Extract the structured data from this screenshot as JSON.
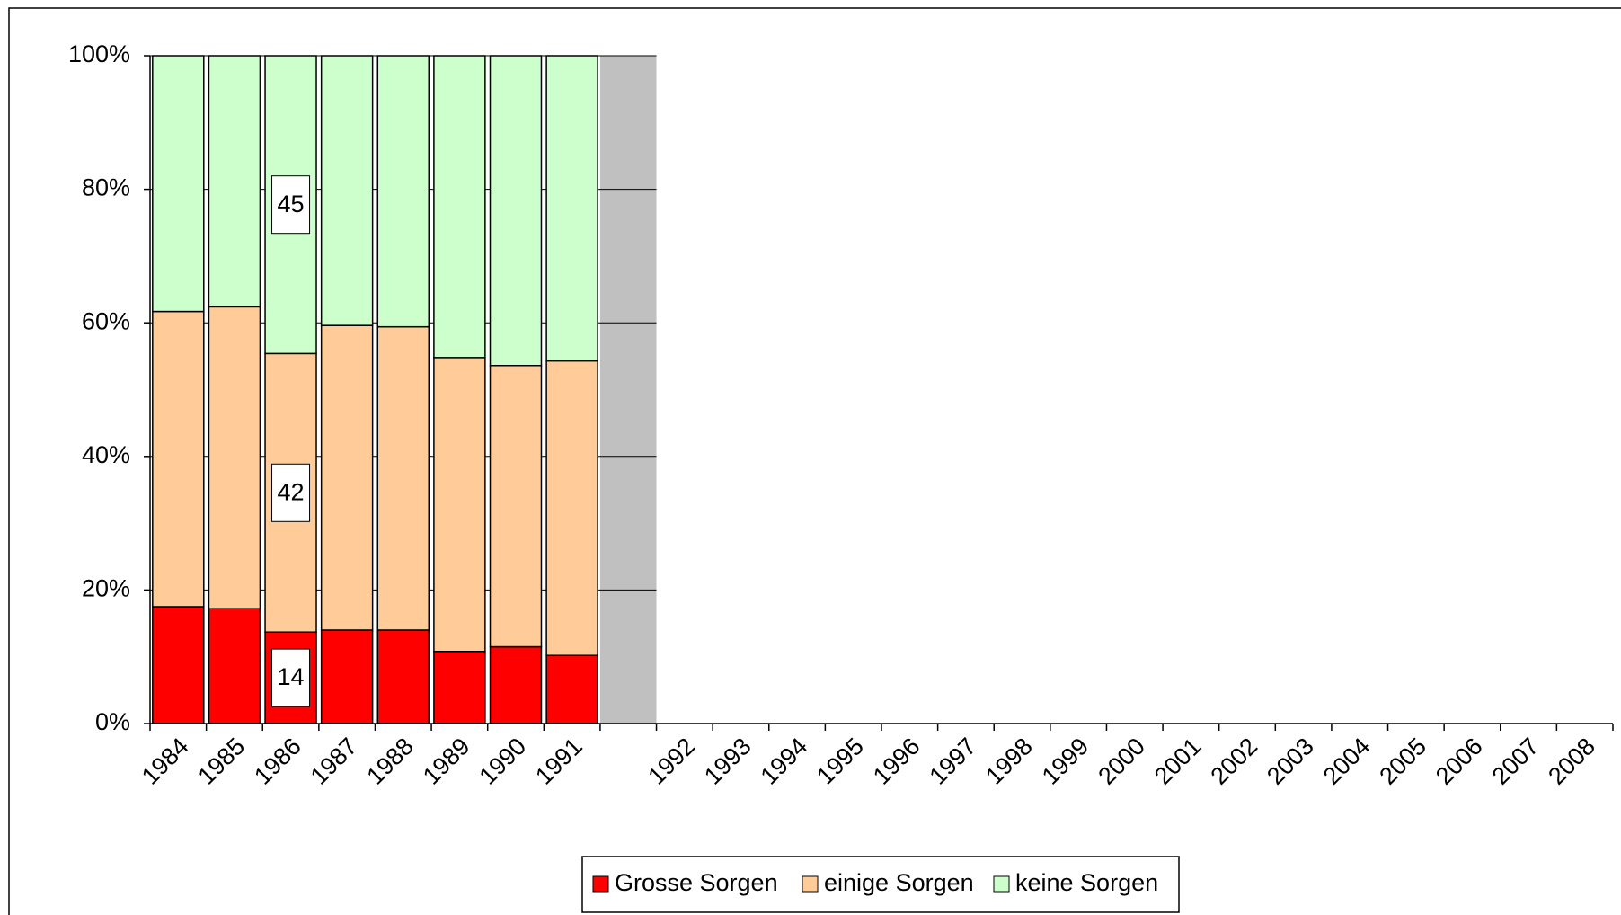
{
  "chart_data": {
    "type": "stacked_bar",
    "categories": [
      "1984",
      "1985",
      "1986",
      "1987",
      "1988",
      "1989",
      "1990",
      "1991",
      null,
      "1992",
      "1993",
      "1994",
      "1995",
      "1996",
      "1997",
      "1998",
      "1999",
      "2000",
      "2001",
      "2002",
      "2003",
      "2004",
      "2005",
      "2006",
      "2007",
      "2008"
    ],
    "series": [
      {
        "name": "Grosse Sorgen",
        "color": "#ff0000",
        "values": [
          17.5,
          17.2,
          13.7,
          14,
          14,
          10.8,
          11.5,
          10.2,
          null,
          null,
          null,
          null,
          null,
          null,
          null,
          null,
          null,
          null,
          null,
          null,
          null,
          null,
          null,
          null,
          null,
          null
        ],
        "value_labels": [
          null,
          null,
          "14",
          null,
          null,
          null,
          null,
          null,
          null,
          null,
          null,
          null,
          null,
          null,
          null,
          null,
          null,
          null,
          null,
          null,
          null,
          null,
          null,
          null,
          null,
          null
        ]
      },
      {
        "name": "einige Sorgen",
        "color": "#ffcc99",
        "values": [
          44.2,
          45.2,
          41.7,
          45.6,
          45.4,
          44,
          42.1,
          44.1,
          null,
          null,
          null,
          null,
          null,
          null,
          null,
          null,
          null,
          null,
          null,
          null,
          null,
          null,
          null,
          null,
          null,
          null
        ],
        "value_labels": [
          null,
          null,
          "42",
          null,
          null,
          null,
          null,
          null,
          null,
          null,
          null,
          null,
          null,
          null,
          null,
          null,
          null,
          null,
          null,
          null,
          null,
          null,
          null,
          null,
          null,
          null
        ]
      },
      {
        "name": "keine Sorgen",
        "color": "#ccffcc",
        "values": [
          38.3,
          37.6,
          44.6,
          40.4,
          40.6,
          45.2,
          46.4,
          45.7,
          null,
          null,
          null,
          null,
          null,
          null,
          null,
          null,
          null,
          null,
          null,
          null,
          null,
          null,
          null,
          null,
          null,
          null
        ],
        "value_labels": [
          null,
          null,
          "45",
          null,
          null,
          null,
          null,
          null,
          null,
          null,
          null,
          null,
          null,
          null,
          null,
          null,
          null,
          null,
          null,
          null,
          null,
          null,
          null,
          null,
          null,
          null
        ]
      }
    ],
    "ylim": [
      0,
      100
    ],
    "yticks": [
      {
        "value": 0,
        "label": "0%"
      },
      {
        "value": 20,
        "label": "20%"
      },
      {
        "value": 40,
        "label": "40%"
      },
      {
        "value": 60,
        "label": "60%"
      },
      {
        "value": 80,
        "label": "80%"
      },
      {
        "value": 100,
        "label": "100%"
      }
    ],
    "grid": true,
    "legend": "bottom"
  }
}
